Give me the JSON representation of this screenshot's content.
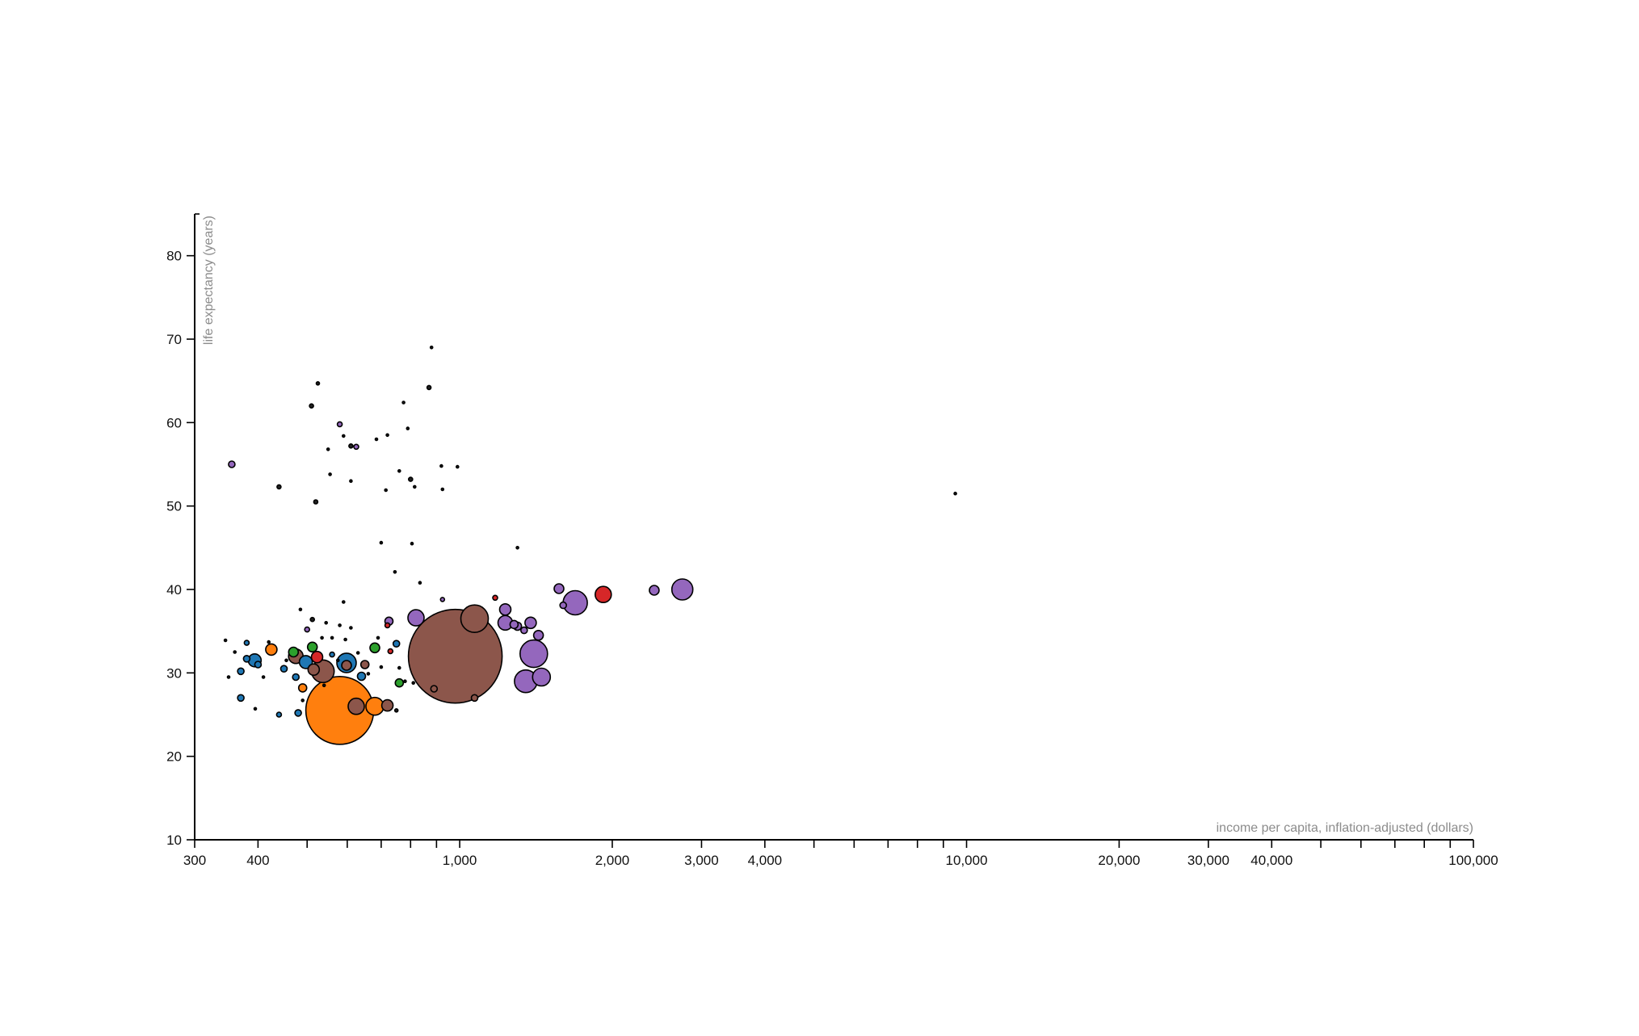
{
  "chart_data": {
    "type": "scatter",
    "title": "",
    "xlabel": "income per capita, inflation-adjusted (dollars)",
    "ylabel": "life expectancy (years)",
    "x_scale": "log",
    "xlim": [
      300,
      100000
    ],
    "ylim": [
      10,
      85
    ],
    "grid": false,
    "legend": "none",
    "x_ticks": [
      300,
      400,
      1000,
      2000,
      3000,
      4000,
      10000,
      20000,
      30000,
      40000,
      100000
    ],
    "x_tick_labels": [
      "300",
      "400",
      "1,000",
      "2,000",
      "3,000",
      "4,000",
      "10,000",
      "20,000",
      "30,000",
      "40,000",
      "100,000"
    ],
    "x_minor_ticks": [
      500,
      600,
      700,
      800,
      900,
      5000,
      6000,
      7000,
      8000,
      9000,
      50000,
      60000,
      70000,
      80000,
      90000
    ],
    "y_ticks": [
      10,
      20,
      30,
      40,
      50,
      60,
      70,
      80
    ],
    "y_tick_labels": [
      "10",
      "20",
      "30",
      "40",
      "50",
      "60",
      "70",
      "80"
    ],
    "colors": {
      "purple": "#9467bd",
      "brown": "#8c564b",
      "orange": "#ff7f0e",
      "blue": "#1f77b4",
      "green": "#2ca02c",
      "red": "#d62728",
      "black": "#222222"
    },
    "points": [
      {
        "x": 980,
        "y": 32,
        "r": 58,
        "c": "brown"
      },
      {
        "x": 580,
        "y": 25.5,
        "r": 42,
        "c": "orange"
      },
      {
        "x": 1070,
        "y": 36.5,
        "r": 17,
        "c": "brown"
      },
      {
        "x": 1690,
        "y": 38.4,
        "r": 15,
        "c": "purple"
      },
      {
        "x": 1400,
        "y": 32.3,
        "r": 17,
        "c": "purple"
      },
      {
        "x": 1350,
        "y": 29,
        "r": 14,
        "c": "purple"
      },
      {
        "x": 1450,
        "y": 29.5,
        "r": 11,
        "c": "purple"
      },
      {
        "x": 2750,
        "y": 40,
        "r": 13,
        "c": "purple"
      },
      {
        "x": 1920,
        "y": 39.4,
        "r": 10,
        "c": "red"
      },
      {
        "x": 2420,
        "y": 39.9,
        "r": 6,
        "c": "purple"
      },
      {
        "x": 1570,
        "y": 40.1,
        "r": 6,
        "c": "purple"
      },
      {
        "x": 1600,
        "y": 38.1,
        "r": 4,
        "c": "purple"
      },
      {
        "x": 820,
        "y": 36.6,
        "r": 10,
        "c": "purple"
      },
      {
        "x": 1230,
        "y": 37.6,
        "r": 7,
        "c": "purple"
      },
      {
        "x": 1230,
        "y": 36,
        "r": 9,
        "c": "purple"
      },
      {
        "x": 1380,
        "y": 36,
        "r": 7,
        "c": "purple"
      },
      {
        "x": 1430,
        "y": 34.5,
        "r": 6,
        "c": "purple"
      },
      {
        "x": 1300,
        "y": 35.6,
        "r": 5,
        "c": "purple"
      },
      {
        "x": 1340,
        "y": 35.1,
        "r": 4,
        "c": "purple"
      },
      {
        "x": 1280,
        "y": 35.8,
        "r": 5,
        "c": "purple"
      },
      {
        "x": 725,
        "y": 36.2,
        "r": 5,
        "c": "purple"
      },
      {
        "x": 598,
        "y": 31.2,
        "r": 12,
        "c": "blue"
      },
      {
        "x": 537,
        "y": 30.2,
        "r": 14,
        "c": "brown"
      },
      {
        "x": 680,
        "y": 26,
        "r": 11,
        "c": "orange"
      },
      {
        "x": 625,
        "y": 26,
        "r": 10,
        "c": "brown"
      },
      {
        "x": 720,
        "y": 26.1,
        "r": 7,
        "c": "brown"
      },
      {
        "x": 475,
        "y": 32,
        "r": 9,
        "c": "brown"
      },
      {
        "x": 425,
        "y": 32.8,
        "r": 7,
        "c": "orange"
      },
      {
        "x": 394,
        "y": 31.5,
        "r": 8,
        "c": "blue"
      },
      {
        "x": 497,
        "y": 31.3,
        "r": 8,
        "c": "blue"
      },
      {
        "x": 523,
        "y": 31.9,
        "r": 7,
        "c": "red"
      },
      {
        "x": 512,
        "y": 33.1,
        "r": 6,
        "c": "green"
      },
      {
        "x": 470,
        "y": 32.5,
        "r": 6,
        "c": "green"
      },
      {
        "x": 515,
        "y": 30.4,
        "r": 7,
        "c": "brown"
      },
      {
        "x": 598,
        "y": 30.9,
        "r": 6,
        "c": "brown"
      },
      {
        "x": 650,
        "y": 31,
        "r": 5,
        "c": "brown"
      },
      {
        "x": 680,
        "y": 33,
        "r": 6,
        "c": "green"
      },
      {
        "x": 760,
        "y": 28.8,
        "r": 5,
        "c": "green"
      },
      {
        "x": 490,
        "y": 28.2,
        "r": 5,
        "c": "orange"
      },
      {
        "x": 480,
        "y": 25.2,
        "r": 4,
        "c": "blue"
      },
      {
        "x": 440,
        "y": 25,
        "r": 3,
        "c": "blue"
      },
      {
        "x": 370,
        "y": 27,
        "r": 4,
        "c": "blue"
      },
      {
        "x": 370,
        "y": 30.2,
        "r": 4,
        "c": "blue"
      },
      {
        "x": 380,
        "y": 31.7,
        "r": 4,
        "c": "blue"
      },
      {
        "x": 400,
        "y": 31,
        "r": 4,
        "c": "blue"
      },
      {
        "x": 450,
        "y": 30.5,
        "r": 4,
        "c": "blue"
      },
      {
        "x": 475,
        "y": 29.5,
        "r": 4,
        "c": "blue"
      },
      {
        "x": 640,
        "y": 29.6,
        "r": 5,
        "c": "blue"
      },
      {
        "x": 750,
        "y": 33.5,
        "r": 4,
        "c": "blue"
      },
      {
        "x": 380,
        "y": 33.6,
        "r": 3,
        "c": "blue"
      },
      {
        "x": 560,
        "y": 32.2,
        "r": 3,
        "c": "blue"
      },
      {
        "x": 730,
        "y": 32.6,
        "r": 3,
        "c": "red"
      },
      {
        "x": 720,
        "y": 35.7,
        "r": 3,
        "c": "red"
      },
      {
        "x": 1175,
        "y": 39,
        "r": 3,
        "c": "red"
      },
      {
        "x": 890,
        "y": 28.1,
        "r": 4,
        "c": "brown"
      },
      {
        "x": 1070,
        "y": 27,
        "r": 4,
        "c": "brown"
      },
      {
        "x": 355,
        "y": 55,
        "r": 4,
        "c": "purple"
      },
      {
        "x": 580,
        "y": 59.8,
        "r": 3,
        "c": "purple"
      },
      {
        "x": 610,
        "y": 57.2,
        "r": 2.5,
        "c": "black"
      },
      {
        "x": 625,
        "y": 57.1,
        "r": 3,
        "c": "purple"
      },
      {
        "x": 525,
        "y": 64.7,
        "r": 2,
        "c": "black"
      },
      {
        "x": 510,
        "y": 62,
        "r": 2.5,
        "c": "black"
      },
      {
        "x": 870,
        "y": 64.2,
        "r": 2.5,
        "c": "black"
      },
      {
        "x": 880,
        "y": 69,
        "r": 1.5,
        "c": "black"
      },
      {
        "x": 775,
        "y": 62.4,
        "r": 1.5,
        "c": "black"
      },
      {
        "x": 790,
        "y": 59.3,
        "r": 1.5,
        "c": "black"
      },
      {
        "x": 720,
        "y": 58.5,
        "r": 1.5,
        "c": "black"
      },
      {
        "x": 685,
        "y": 58,
        "r": 1.5,
        "c": "black"
      },
      {
        "x": 590,
        "y": 58.4,
        "r": 1.5,
        "c": "black"
      },
      {
        "x": 550,
        "y": 56.8,
        "r": 1.5,
        "c": "black"
      },
      {
        "x": 440,
        "y": 52.3,
        "r": 2.5,
        "c": "black"
      },
      {
        "x": 520,
        "y": 50.5,
        "r": 2.5,
        "c": "black"
      },
      {
        "x": 555,
        "y": 53.8,
        "r": 1.5,
        "c": "black"
      },
      {
        "x": 610,
        "y": 53,
        "r": 1.5,
        "c": "black"
      },
      {
        "x": 715,
        "y": 51.9,
        "r": 1.5,
        "c": "black"
      },
      {
        "x": 760,
        "y": 54.2,
        "r": 1.5,
        "c": "black"
      },
      {
        "x": 800,
        "y": 53.2,
        "r": 2.5,
        "c": "black"
      },
      {
        "x": 815,
        "y": 52.3,
        "r": 1.5,
        "c": "black"
      },
      {
        "x": 920,
        "y": 54.8,
        "r": 1.5,
        "c": "black"
      },
      {
        "x": 990,
        "y": 54.7,
        "r": 1.5,
        "c": "black"
      },
      {
        "x": 925,
        "y": 52,
        "r": 1.5,
        "c": "black"
      },
      {
        "x": 1300,
        "y": 45,
        "r": 1.5,
        "c": "black"
      },
      {
        "x": 700,
        "y": 45.6,
        "r": 1.5,
        "c": "black"
      },
      {
        "x": 805,
        "y": 45.5,
        "r": 1.5,
        "c": "black"
      },
      {
        "x": 745,
        "y": 42.1,
        "r": 1.5,
        "c": "black"
      },
      {
        "x": 835,
        "y": 40.8,
        "r": 1.5,
        "c": "black"
      },
      {
        "x": 925,
        "y": 38.8,
        "r": 2.5,
        "c": "purple"
      },
      {
        "x": 590,
        "y": 38.5,
        "r": 1.5,
        "c": "black"
      },
      {
        "x": 485,
        "y": 37.6,
        "r": 1.5,
        "c": "black"
      },
      {
        "x": 512,
        "y": 36.4,
        "r": 2.5,
        "c": "black"
      },
      {
        "x": 545,
        "y": 36,
        "r": 1.5,
        "c": "black"
      },
      {
        "x": 580,
        "y": 35.7,
        "r": 1.5,
        "c": "black"
      },
      {
        "x": 610,
        "y": 35.4,
        "r": 1.5,
        "c": "black"
      },
      {
        "x": 500,
        "y": 35.2,
        "r": 3,
        "c": "purple"
      },
      {
        "x": 535,
        "y": 34.2,
        "r": 1.5,
        "c": "black"
      },
      {
        "x": 560,
        "y": 34.2,
        "r": 1.5,
        "c": "black"
      },
      {
        "x": 595,
        "y": 34,
        "r": 1.5,
        "c": "black"
      },
      {
        "x": 690,
        "y": 34.2,
        "r": 1.5,
        "c": "black"
      },
      {
        "x": 345,
        "y": 33.9,
        "r": 1.5,
        "c": "black"
      },
      {
        "x": 360,
        "y": 32.5,
        "r": 1.5,
        "c": "black"
      },
      {
        "x": 420,
        "y": 33.7,
        "r": 1.5,
        "c": "black"
      },
      {
        "x": 455,
        "y": 31.5,
        "r": 1.5,
        "c": "black"
      },
      {
        "x": 350,
        "y": 29.5,
        "r": 1.5,
        "c": "black"
      },
      {
        "x": 410,
        "y": 29.5,
        "r": 1.5,
        "c": "black"
      },
      {
        "x": 395,
        "y": 25.7,
        "r": 1.5,
        "c": "black"
      },
      {
        "x": 490,
        "y": 26.7,
        "r": 1.5,
        "c": "black"
      },
      {
        "x": 750,
        "y": 25.5,
        "r": 2,
        "c": "black"
      },
      {
        "x": 660,
        "y": 29.9,
        "r": 1.5,
        "c": "black"
      },
      {
        "x": 700,
        "y": 30.7,
        "r": 1.5,
        "c": "black"
      },
      {
        "x": 760,
        "y": 30.6,
        "r": 1.5,
        "c": "black"
      },
      {
        "x": 780,
        "y": 29,
        "r": 1.5,
        "c": "black"
      },
      {
        "x": 810,
        "y": 28.8,
        "r": 1.5,
        "c": "black"
      },
      {
        "x": 630,
        "y": 32.4,
        "r": 1.5,
        "c": "black"
      },
      {
        "x": 575,
        "y": 31.5,
        "r": 1.5,
        "c": "black"
      },
      {
        "x": 540,
        "y": 28.5,
        "r": 1.5,
        "c": "black"
      },
      {
        "x": 9500,
        "y": 51.5,
        "r": 1.5,
        "c": "black"
      }
    ]
  }
}
